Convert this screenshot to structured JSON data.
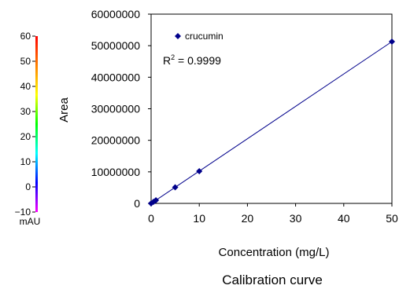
{
  "chart_data": {
    "type": "scatter",
    "xlabel": "Concentration (mg/L)",
    "ylabel": "Area",
    "caption": "Calibration curve",
    "xlim": [
      0,
      50
    ],
    "ylim": [
      0,
      60000000
    ],
    "xticks": [
      0,
      10,
      20,
      30,
      40,
      50
    ],
    "yticks": [
      0,
      10000000,
      20000000,
      30000000,
      40000000,
      50000000,
      60000000
    ],
    "xtick_labels": [
      "0",
      "10",
      "20",
      "30",
      "40",
      "50"
    ],
    "ytick_labels": [
      "0",
      "10000000",
      "20000000",
      "30000000",
      "40000000",
      "50000000",
      "60000000"
    ],
    "grid": false,
    "legend_position": "top-left",
    "series": [
      {
        "name": "crucumin",
        "color": "#00008b",
        "marker": "diamond",
        "trendline": true,
        "x": [
          0,
          0.5,
          1,
          5,
          10,
          50
        ],
        "y": [
          0,
          500000,
          1000000,
          5100000,
          10200000,
          51300000
        ]
      }
    ],
    "annotation": {
      "r2_prefix": "R",
      "r2_sup": "2",
      "r2_rest": " = 0.9999"
    },
    "colorbar": {
      "unit": "mAU",
      "range": [
        -10,
        60
      ],
      "ticks": [
        60,
        50,
        40,
        30,
        20,
        10,
        0,
        -10
      ],
      "tick_labels": [
        "60",
        "50",
        "40",
        "30",
        "20",
        "10",
        "0",
        "−10"
      ],
      "colors": [
        "#ff0000",
        "#ff8000",
        "#ffff00",
        "#00ff00",
        "#00ffff",
        "#0000ff",
        "#ff00ff"
      ]
    }
  }
}
